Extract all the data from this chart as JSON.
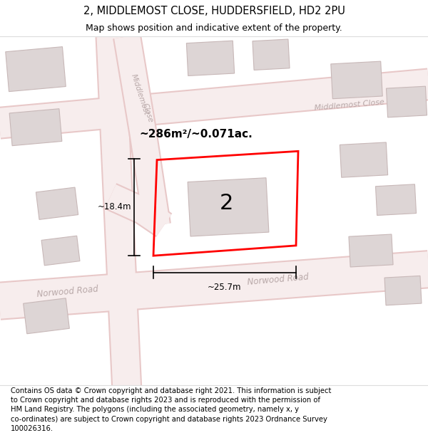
{
  "title": "2, MIDDLEMOST CLOSE, HUDDERSFIELD, HD2 2PU",
  "subtitle": "Map shows position and indicative extent of the property.",
  "footer": "Contains OS data © Crown copyright and database right 2021. This information is subject\nto Crown copyright and database rights 2023 and is reproduced with the permission of\nHM Land Registry. The polygons (including the associated geometry, namely x, y\nco-ordinates) are subject to Crown copyright and database rights 2023 Ordnance Survey\n100026316.",
  "map_bg": "#f7f2f2",
  "road_fill": "#f7eded",
  "road_edge": "#e8c8c8",
  "building_fill": "#ddd5d5",
  "building_edge": "#c8b8b8",
  "street_color": "#b8a8a8",
  "property_edge": "#ff0000",
  "property_label": "2",
  "area_label": "~286m²/~0.071ac.",
  "width_label": "~25.7m",
  "height_label": "~18.4m",
  "title_fontsize": 10.5,
  "subtitle_fontsize": 9,
  "footer_fontsize": 7.2,
  "street_fontsize": 8.5,
  "dim_fontsize": 8.5,
  "area_fontsize": 11
}
